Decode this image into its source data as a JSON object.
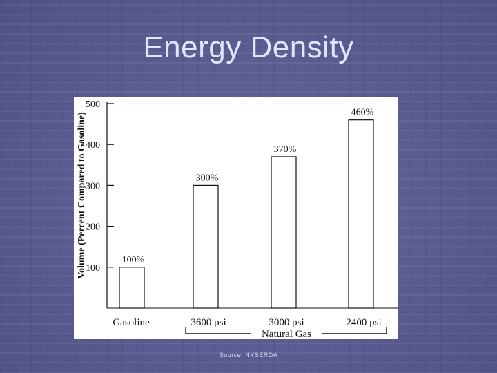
{
  "slide": {
    "title": "Energy Density",
    "source": "Source: NYSERDA"
  },
  "chart_data": {
    "type": "bar",
    "title": "",
    "xlabel": "",
    "ylabel": "Volume (Percent Compared to Gasoline)",
    "ylim": [
      0,
      500
    ],
    "yticks": [
      100,
      200,
      300,
      400,
      500
    ],
    "categories": [
      "Gasoline",
      "3600 psi",
      "3000 psi",
      "2400 psi"
    ],
    "values": [
      100,
      300,
      370,
      460
    ],
    "data_labels": [
      "100%",
      "300%",
      "370%",
      "460%"
    ],
    "group_label": "Natural Gas",
    "grid": false
  }
}
